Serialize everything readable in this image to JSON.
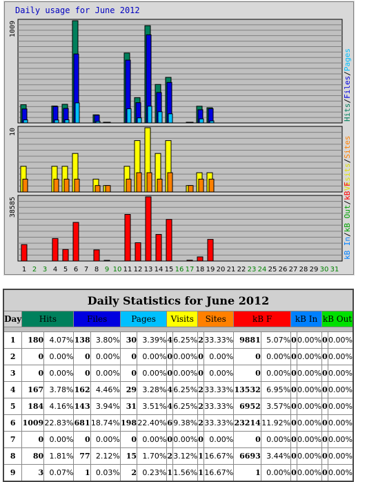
{
  "graph": {
    "title": "Daily usage for June 2012",
    "panel1_max_label": "1009",
    "panel2_max_label": "10",
    "panel3_max_label": "38585",
    "legend1": [
      {
        "text": "Hits",
        "color": "#00805c"
      },
      {
        "text": "/",
        "color": "#000000"
      },
      {
        "text": "Files",
        "color": "#0000e0"
      },
      {
        "text": "/",
        "color": "#000000"
      },
      {
        "text": "Pages",
        "color": "#00c0ff"
      }
    ],
    "legend2": [
      {
        "text": "Visits",
        "color": "#e0e000"
      },
      {
        "text": "/",
        "color": "#000000"
      },
      {
        "text": "Sites",
        "color": "#ff8000"
      }
    ],
    "legend3": [
      {
        "text": "kB In",
        "color": "#0080ff"
      },
      {
        "text": "/",
        "color": "#000000"
      },
      {
        "text": "kB Out",
        "color": "#00a000"
      },
      {
        "text": "/",
        "color": "#000000"
      },
      {
        "text": "kB F",
        "color": "#ff0000"
      }
    ],
    "day_labels": [
      "1",
      "2",
      "3",
      "4",
      "5",
      "6",
      "7",
      "8",
      "9",
      "10",
      "11",
      "12",
      "13",
      "14",
      "15",
      "16",
      "17",
      "18",
      "19",
      "20",
      "21",
      "22",
      "23",
      "24",
      "25",
      "26",
      "27",
      "28",
      "29",
      "30",
      "31"
    ],
    "weekend_days": [
      2,
      3,
      9,
      10,
      16,
      17,
      23,
      24,
      30,
      31
    ],
    "colors": {
      "hits": "#00805c",
      "files": "#0000e0",
      "pages": "#00c0ff",
      "visits": "#ffff00",
      "sites": "#ff8000",
      "kbf": "#ff0000",
      "weekday": "#000000",
      "weekend": "#008000",
      "bg": "#c0c0c0",
      "grid": "#808080"
    }
  },
  "chart_data": {
    "type": "bar",
    "title": "Daily usage for June 2012",
    "categories": [
      "1",
      "2",
      "3",
      "4",
      "5",
      "6",
      "7",
      "8",
      "9",
      "10",
      "11",
      "12",
      "13",
      "14",
      "15",
      "16",
      "17",
      "18",
      "19",
      "20",
      "21",
      "22",
      "23",
      "24",
      "25",
      "26",
      "27",
      "28",
      "29",
      "30",
      "31"
    ],
    "panels": [
      {
        "ylim": [
          0,
          1009
        ],
        "series": [
          {
            "name": "Hits",
            "values": [
              180,
              0,
              0,
              167,
              184,
              1009,
              0,
              80,
              3,
              0,
              690,
              250,
              960,
              380,
              450,
              0,
              5,
              165,
              150,
              0,
              0,
              0,
              0,
              0,
              0,
              0,
              0,
              0,
              0,
              0,
              0
            ]
          },
          {
            "name": "Files",
            "values": [
              138,
              0,
              0,
              162,
              143,
              681,
              0,
              77,
              1,
              0,
              620,
              200,
              870,
              300,
              400,
              0,
              5,
              130,
              140,
              0,
              0,
              0,
              0,
              0,
              0,
              0,
              0,
              0,
              0,
              0,
              0
            ]
          },
          {
            "name": "Pages",
            "values": [
              30,
              0,
              0,
              29,
              31,
              198,
              0,
              15,
              2,
              0,
              140,
              50,
              165,
              110,
              90,
              0,
              1,
              40,
              20,
              0,
              0,
              0,
              0,
              0,
              0,
              0,
              0,
              0,
              0,
              0,
              0
            ]
          }
        ]
      },
      {
        "ylim": [
          0,
          10
        ],
        "series": [
          {
            "name": "Visits",
            "values": [
              4,
              0,
              0,
              4,
              4,
              6,
              0,
              2,
              1,
              0,
              4,
              8,
              10,
              6,
              8,
              0,
              1,
              3,
              3,
              0,
              0,
              0,
              0,
              0,
              0,
              0,
              0,
              0,
              0,
              0,
              0
            ]
          },
          {
            "name": "Sites",
            "values": [
              2,
              0,
              0,
              2,
              2,
              2,
              0,
              1,
              1,
              0,
              2,
              3,
              3,
              2,
              3,
              0,
              1,
              2,
              2,
              0,
              0,
              0,
              0,
              0,
              0,
              0,
              0,
              0,
              0,
              0,
              0
            ]
          }
        ]
      },
      {
        "ylim": [
          0,
          38585
        ],
        "series": [
          {
            "name": "kB F",
            "values": [
              9881,
              0,
              0,
              13532,
              6952,
              23214,
              0,
              6693,
              1,
              0,
              28000,
              11000,
              38585,
              16000,
              25000,
              0,
              500,
              2500,
              13000,
              0,
              0,
              0,
              0,
              0,
              0,
              0,
              0,
              0,
              0,
              0,
              0
            ]
          }
        ]
      }
    ]
  },
  "table": {
    "title": "Daily Statistics for June 2012",
    "headers": {
      "day": "Day",
      "hits": "Hits",
      "files": "Files",
      "pages": "Pages",
      "visits": "Visits",
      "sites": "Sites",
      "kbf": "kB F",
      "kbin": "kB In",
      "kbout": "kB Out"
    },
    "rows": [
      {
        "day": "1",
        "hits": "180",
        "hits_pct": "4.07%",
        "files": "138",
        "files_pct": "3.80%",
        "pages": "30",
        "pages_pct": "3.39%",
        "visits": "4",
        "visits_pct": "6.25%",
        "sites": "2",
        "sites_pct": "33.33%",
        "kbf": "9881",
        "kbf_pct": "5.07%",
        "kbin": "0",
        "kbin_pct": "0.00%",
        "kbout": "0",
        "kbout_pct": "0.00%"
      },
      {
        "day": "2",
        "hits": "0",
        "hits_pct": "0.00%",
        "files": "0",
        "files_pct": "0.00%",
        "pages": "0",
        "pages_pct": "0.00%",
        "visits": "0",
        "visits_pct": "0.00%",
        "sites": "0",
        "sites_pct": "0.00%",
        "kbf": "0",
        "kbf_pct": "0.00%",
        "kbin": "0",
        "kbin_pct": "0.00%",
        "kbout": "0",
        "kbout_pct": "0.00%"
      },
      {
        "day": "3",
        "hits": "0",
        "hits_pct": "0.00%",
        "files": "0",
        "files_pct": "0.00%",
        "pages": "0",
        "pages_pct": "0.00%",
        "visits": "0",
        "visits_pct": "0.00%",
        "sites": "0",
        "sites_pct": "0.00%",
        "kbf": "0",
        "kbf_pct": "0.00%",
        "kbin": "0",
        "kbin_pct": "0.00%",
        "kbout": "0",
        "kbout_pct": "0.00%"
      },
      {
        "day": "4",
        "hits": "167",
        "hits_pct": "3.78%",
        "files": "162",
        "files_pct": "4.46%",
        "pages": "29",
        "pages_pct": "3.28%",
        "visits": "4",
        "visits_pct": "6.25%",
        "sites": "2",
        "sites_pct": "33.33%",
        "kbf": "13532",
        "kbf_pct": "6.95%",
        "kbin": "0",
        "kbin_pct": "0.00%",
        "kbout": "0",
        "kbout_pct": "0.00%"
      },
      {
        "day": "5",
        "hits": "184",
        "hits_pct": "4.16%",
        "files": "143",
        "files_pct": "3.94%",
        "pages": "31",
        "pages_pct": "3.51%",
        "visits": "4",
        "visits_pct": "6.25%",
        "sites": "2",
        "sites_pct": "33.33%",
        "kbf": "6952",
        "kbf_pct": "3.57%",
        "kbin": "0",
        "kbin_pct": "0.00%",
        "kbout": "0",
        "kbout_pct": "0.00%"
      },
      {
        "day": "6",
        "hits": "1009",
        "hits_pct": "22.83%",
        "files": "681",
        "files_pct": "18.74%",
        "pages": "198",
        "pages_pct": "22.40%",
        "visits": "6",
        "visits_pct": "9.38%",
        "sites": "2",
        "sites_pct": "33.33%",
        "kbf": "23214",
        "kbf_pct": "11.92%",
        "kbin": "0",
        "kbin_pct": "0.00%",
        "kbout": "0",
        "kbout_pct": "0.00%"
      },
      {
        "day": "7",
        "hits": "0",
        "hits_pct": "0.00%",
        "files": "0",
        "files_pct": "0.00%",
        "pages": "0",
        "pages_pct": "0.00%",
        "visits": "0",
        "visits_pct": "0.00%",
        "sites": "0",
        "sites_pct": "0.00%",
        "kbf": "0",
        "kbf_pct": "0.00%",
        "kbin": "0",
        "kbin_pct": "0.00%",
        "kbout": "0",
        "kbout_pct": "0.00%"
      },
      {
        "day": "8",
        "hits": "80",
        "hits_pct": "1.81%",
        "files": "77",
        "files_pct": "2.12%",
        "pages": "15",
        "pages_pct": "1.70%",
        "visits": "2",
        "visits_pct": "3.12%",
        "sites": "1",
        "sites_pct": "16.67%",
        "kbf": "6693",
        "kbf_pct": "3.44%",
        "kbin": "0",
        "kbin_pct": "0.00%",
        "kbout": "0",
        "kbout_pct": "0.00%"
      },
      {
        "day": "9",
        "hits": "3",
        "hits_pct": "0.07%",
        "files": "1",
        "files_pct": "0.03%",
        "pages": "2",
        "pages_pct": "0.23%",
        "visits": "1",
        "visits_pct": "1.56%",
        "sites": "1",
        "sites_pct": "16.67%",
        "kbf": "1",
        "kbf_pct": "0.00%",
        "kbin": "0",
        "kbin_pct": "0.00%",
        "kbout": "0",
        "kbout_pct": "0.00%"
      }
    ]
  }
}
